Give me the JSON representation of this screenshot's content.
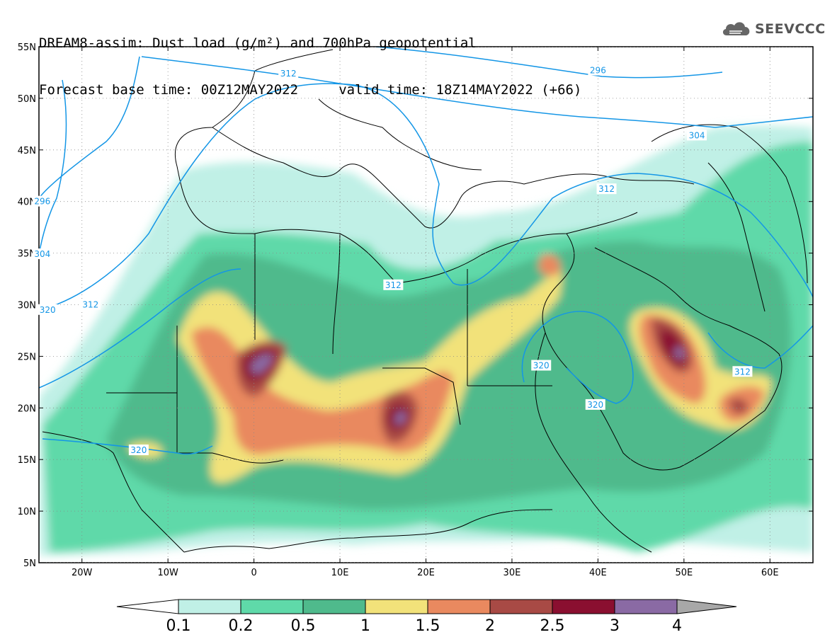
{
  "title": {
    "line1": "DREAM8-assim: Dust load (g/m²) and 700hPa geopotential",
    "line2": "Forecast base time: 00Z12MAY2022     valid time: 18Z14MAY2022 (+66)"
  },
  "logo": {
    "text": "SEEVCCC",
    "icon": "cloud-icon"
  },
  "axes": {
    "lat_ticks": [
      {
        "label": "55N",
        "v": 55
      },
      {
        "label": "50N",
        "v": 50
      },
      {
        "label": "45N",
        "v": 45
      },
      {
        "label": "40N",
        "v": 40
      },
      {
        "label": "35N",
        "v": 35
      },
      {
        "label": "30N",
        "v": 30
      },
      {
        "label": "25N",
        "v": 25
      },
      {
        "label": "20N",
        "v": 20
      },
      {
        "label": "15N",
        "v": 15
      },
      {
        "label": "10N",
        "v": 10
      },
      {
        "label": "5N",
        "v": 5
      }
    ],
    "lon_ticks": [
      {
        "label": "20W",
        "v": -20
      },
      {
        "label": "10W",
        "v": -10
      },
      {
        "label": "0",
        "v": 0
      },
      {
        "label": "10E",
        "v": 10
      },
      {
        "label": "20E",
        "v": 20
      },
      {
        "label": "30E",
        "v": 30
      },
      {
        "label": "40E",
        "v": 40
      },
      {
        "label": "50E",
        "v": 50
      },
      {
        "label": "60E",
        "v": 60
      }
    ],
    "lon_range": [
      -25,
      65
    ],
    "lat_range": [
      5,
      55
    ],
    "grid": "dotted"
  },
  "colorbar": {
    "labels": [
      "0.1",
      "0.2",
      "0.5",
      "1",
      "1.5",
      "2",
      "2.5",
      "3",
      "4"
    ],
    "colors": [
      "#c0f0e6",
      "#5fd9a9",
      "#4fba8c",
      "#f2e27a",
      "#e9895f",
      "#a84a45",
      "#8a0f30",
      "#8a6aa4"
    ],
    "under_color": "#ffffff",
    "over_color": "#a8a8a8"
  },
  "contour_labels": [
    {
      "text": "312",
      "lon": -19,
      "lat": 30
    },
    {
      "text": "312",
      "lon": 4,
      "lat": 52.4
    },
    {
      "text": "296",
      "lon": 40,
      "lat": 52.7
    },
    {
      "text": "304",
      "lon": 51.5,
      "lat": 46.4
    },
    {
      "text": "312",
      "lon": 41,
      "lat": 41.2
    },
    {
      "text": "312",
      "lon": 16.2,
      "lat": 31.9
    },
    {
      "text": "320",
      "lon": -24,
      "lat": 29.5
    },
    {
      "text": "320",
      "lon": 33.4,
      "lat": 24.1
    },
    {
      "text": "320",
      "lon": 39.7,
      "lat": 20.3
    },
    {
      "text": "312",
      "lon": 56.8,
      "lat": 23.5
    },
    {
      "text": "320",
      "lon": -13.4,
      "lat": 15.9
    },
    {
      "text": "296",
      "lon": -24.6,
      "lat": 40
    },
    {
      "text": "304",
      "lon": -24.6,
      "lat": 34.9
    }
  ]
}
